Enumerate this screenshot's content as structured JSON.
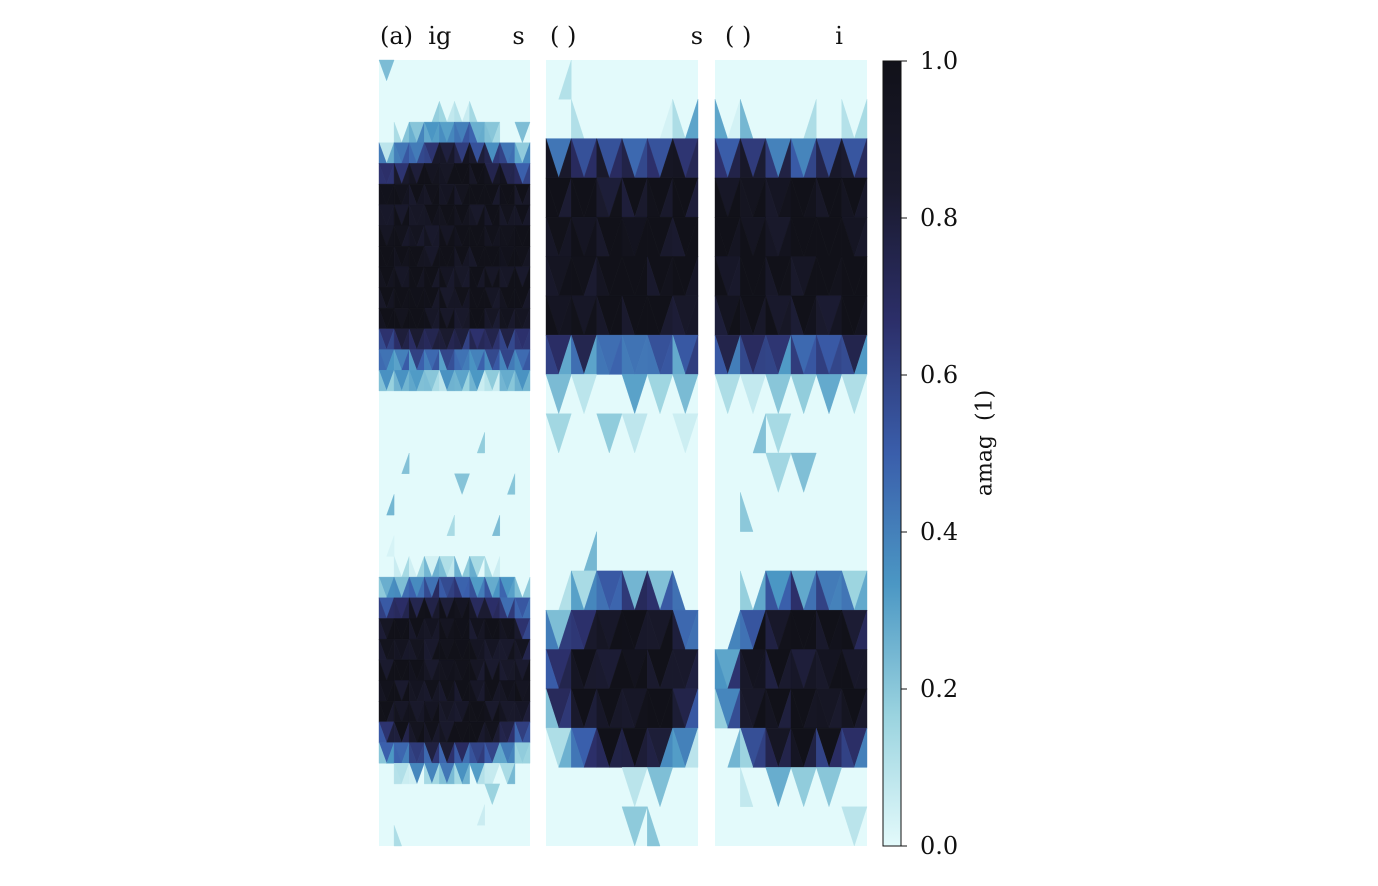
{
  "colors": {
    "background": "#e3fafb",
    "colormap": [
      "#e3fafb",
      "#9ad3df",
      "#4b97c4",
      "#3a5eab",
      "#2c2f6a",
      "#1a1a2e",
      "#111119"
    ]
  },
  "chart_data": {
    "type": "heatmap",
    "panels": [
      {
        "title": "(a)  ig        s"
      },
      {
        "title": "( )               s"
      },
      {
        "title": "( )           i"
      }
    ],
    "colorbar": {
      "label": "amag  (1)",
      "range": [
        0.0,
        1.0
      ],
      "ticks": [
        "0.0",
        "0.2",
        "0.4",
        "0.6",
        "0.8",
        "1.0"
      ]
    },
    "regions": [
      {
        "type": "band",
        "value_peak": 0.97,
        "y_range": [
          0.07,
          0.42
        ]
      },
      {
        "type": "blob",
        "value_peak": 0.95,
        "y_range": [
          0.61,
          0.9
        ]
      }
    ]
  }
}
